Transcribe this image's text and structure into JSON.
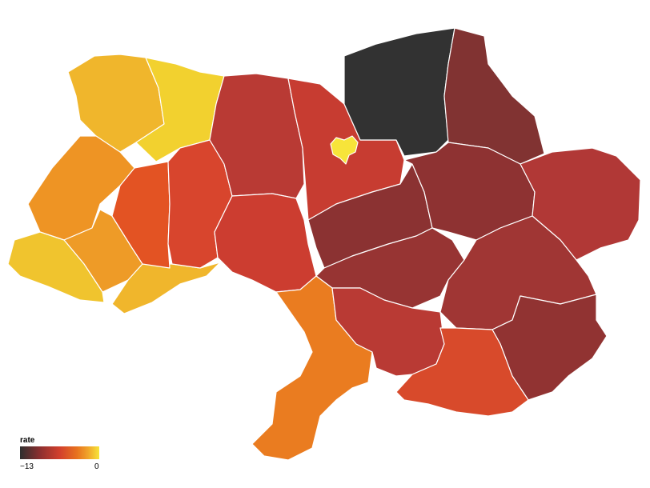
{
  "legend": {
    "title": "rate",
    "min_label": "−13",
    "max_label": "0",
    "colors": [
      "#2f2f2f",
      "#8c2f2f",
      "#d2402d",
      "#e8731f",
      "#f0a52a",
      "#f7e43a"
    ]
  },
  "map": {
    "regions": [
      {
        "name": "region-northwest-1",
        "color": "#f0b62c"
      },
      {
        "name": "region-northwest-2",
        "color": "#f2d12f"
      },
      {
        "name": "region-west-1",
        "color": "#ee9424"
      },
      {
        "name": "region-west-2",
        "color": "#ee9b27"
      },
      {
        "name": "region-west-3",
        "color": "#f0c42e"
      },
      {
        "name": "region-west-4",
        "color": "#f0b62c"
      },
      {
        "name": "region-west-5",
        "color": "#e35323"
      },
      {
        "name": "region-west-6",
        "color": "#d8452d"
      },
      {
        "name": "region-north-1",
        "color": "#b93a34"
      },
      {
        "name": "region-north-2",
        "color": "#c73c31"
      },
      {
        "name": "region-north-3",
        "color": "#323232"
      },
      {
        "name": "region-northeast-1",
        "color": "#813332"
      },
      {
        "name": "region-center-1",
        "color": "#cc3d30"
      },
      {
        "name": "region-center-2",
        "color": "#8b3232"
      },
      {
        "name": "region-center-3",
        "color": "#8e3232"
      },
      {
        "name": "region-center-4",
        "color": "#973433"
      },
      {
        "name": "region-east-1",
        "color": "#b13836"
      },
      {
        "name": "region-east-2",
        "color": "#a03634"
      },
      {
        "name": "region-east-3",
        "color": "#913332"
      },
      {
        "name": "region-south-1",
        "color": "#ea7c20"
      },
      {
        "name": "region-south-2",
        "color": "#b93a34"
      },
      {
        "name": "region-south-3",
        "color": "#d84a2b"
      },
      {
        "name": "region-capital",
        "color": "#f7e43a"
      }
    ]
  }
}
